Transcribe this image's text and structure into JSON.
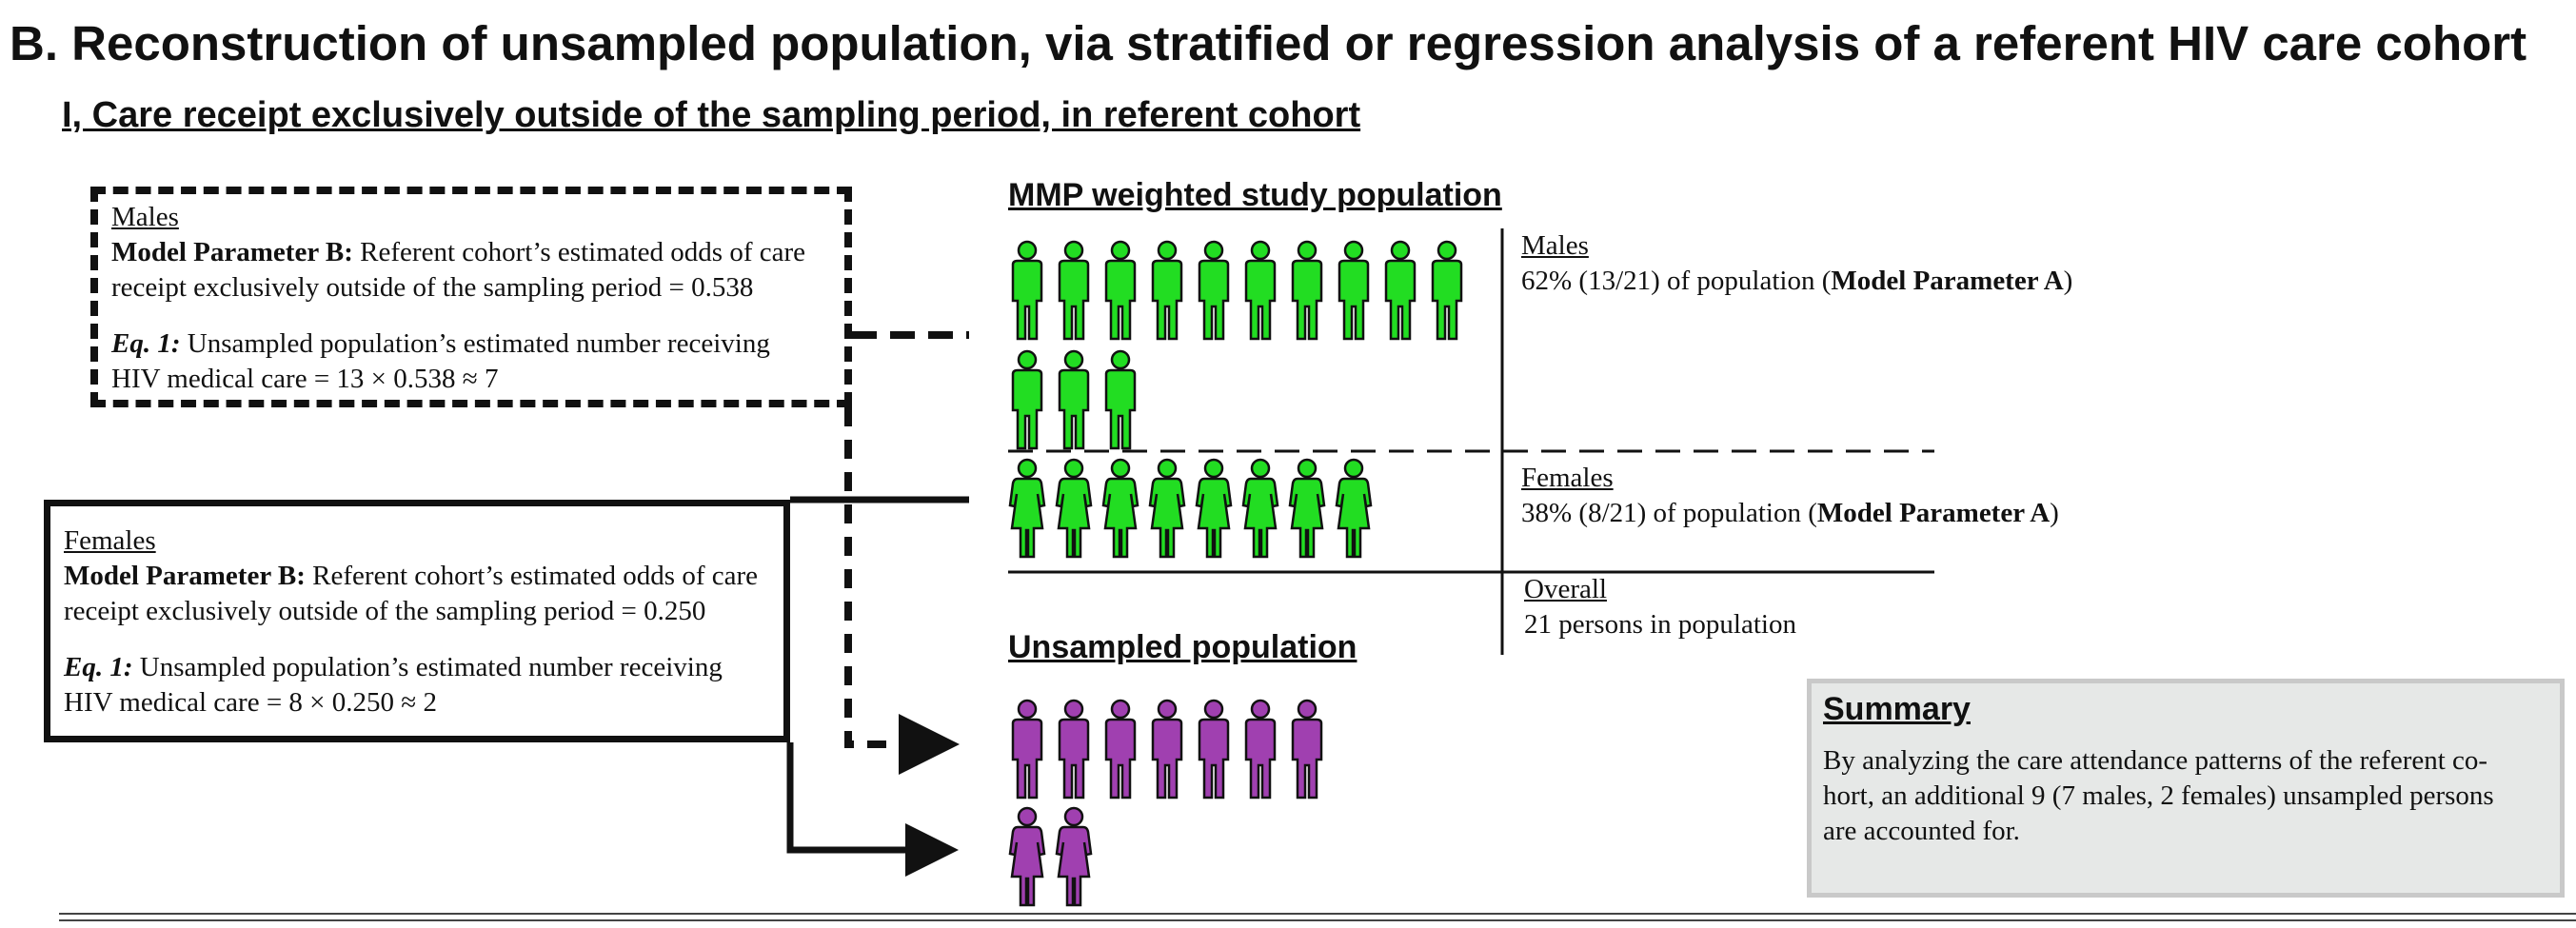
{
  "title": "B. Reconstruction of unsampled population, via stratified or regression analysis of a referent HIV care cohort",
  "subtitle": "I, Care receipt exclusively outside of the sampling period, in referent cohort",
  "males_box": {
    "heading": "Males",
    "param_label": "Model Parameter B:",
    "param_line1": " Referent cohort’s estimated odds of care",
    "param_line2": "receipt exclusively outside of the sampling period = 0.538",
    "eq_label": "Eq. 1:",
    "eq_line1": " Unsampled population’s estimated number receiving",
    "eq_line2": "HIV medical care = 13 × 0.538 ≈ 7"
  },
  "females_box": {
    "heading": "Females",
    "param_label": "Model Parameter B:",
    "param_line1": " Referent cohort’s estimated odds of care",
    "param_line2": "receipt exclusively outside of the sampling period = 0.250",
    "eq_label": "Eq. 1:",
    "eq_line1": " Unsampled population’s estimated number receiving",
    "eq_line2": "HIV medical care = 8 × 0.250 ≈ 2"
  },
  "study_population": {
    "heading": "MMP weighted study population",
    "males_count": 13,
    "females_count": 8,
    "males_label": "Males",
    "males_text": "62% (13/21) of population (",
    "males_param": "Model Parameter A",
    "males_close": ")",
    "females_label": "Females",
    "females_text": "38% (8/21) of population (",
    "females_param": "Model Parameter A",
    "females_close": ")",
    "overall_label": "Overall",
    "overall_text": "21 persons in population"
  },
  "unsampled_population": {
    "heading": "Unsampled population",
    "males_count": 7,
    "females_count": 2
  },
  "summary": {
    "title": "Summary",
    "line1": "By analyzing the care attendance patterns of the referent co-",
    "line2": "hort, an additional 9 (7 males, 2 females) unsampled persons",
    "line3": "are accounted for."
  },
  "colors": {
    "sampled": "#22dd22",
    "unsampled": "#a040b0",
    "outline": "#111111",
    "summary_bg": "#e6e8e7"
  },
  "icons": {
    "male": "male-person-icon",
    "female": "female-person-icon"
  }
}
